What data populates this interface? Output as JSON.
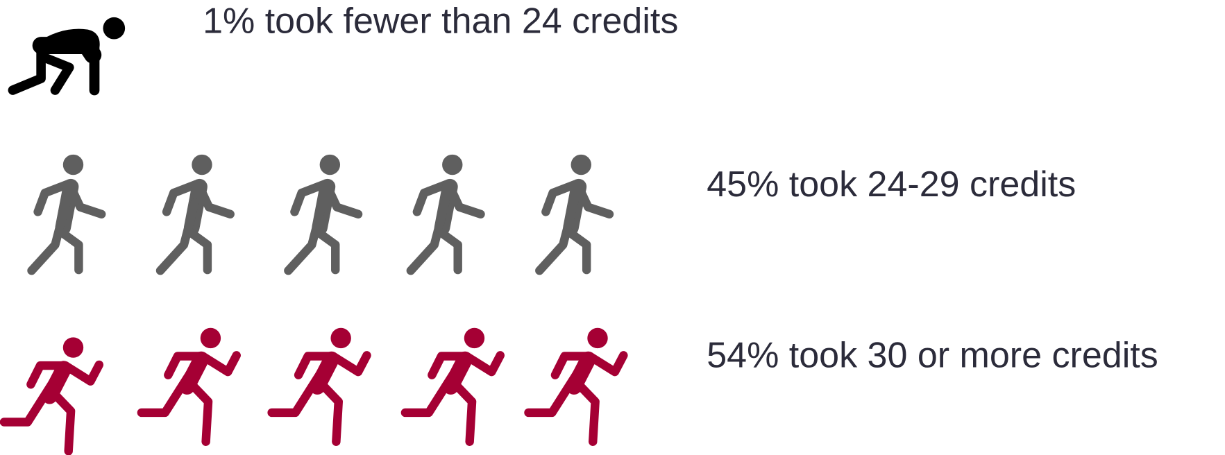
{
  "rows": [
    {
      "text": "1% took fewer than 24 credits",
      "color": "#000000"
    },
    {
      "text": "45% took 24-29 credits",
      "color": "#5f5f5f"
    },
    {
      "text": "54% took 30 or more credits",
      "color": "#a50034"
    }
  ]
}
